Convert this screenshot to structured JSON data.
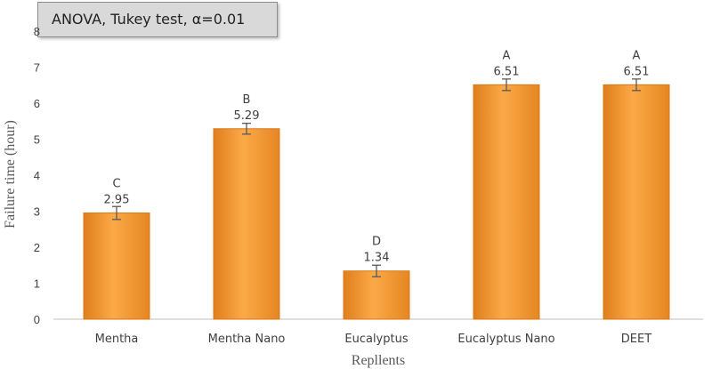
{
  "chart_data": {
    "type": "bar",
    "annotation": "ANOVA, Tukey test, α=0.01",
    "xlabel": "Repllents",
    "ylabel": "Failure time (hour)",
    "ylim": [
      0,
      8
    ],
    "yticks": [
      "0",
      "1",
      "2",
      "3",
      "4",
      "5",
      "6",
      "7",
      "8"
    ],
    "grid": false,
    "categories": [
      "Mentha",
      "Mentha Nano",
      "Eucalyptus",
      "Eucalyptus Nano",
      "DEET"
    ],
    "values": [
      2.95,
      5.29,
      1.34,
      6.51,
      6.51
    ],
    "value_labels": [
      "2.95",
      "5.29",
      "1.34",
      "6.51",
      "6.51"
    ],
    "errors": [
      0.18,
      0.15,
      0.16,
      0.16,
      0.16
    ],
    "groups": [
      "C",
      "B",
      "D",
      "A",
      "A"
    ],
    "colors": {
      "bar": "#f59a30",
      "bar_light": "#fbb25a",
      "bar_dark": "#d9791a",
      "error": "#595959"
    }
  }
}
